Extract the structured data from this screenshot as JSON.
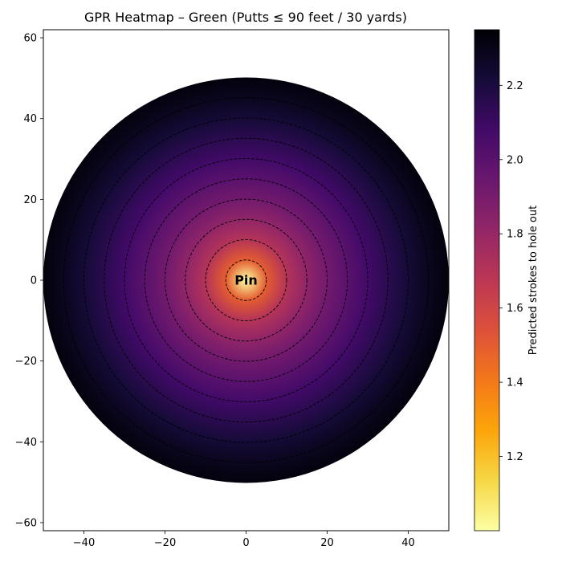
{
  "chart_data": {
    "type": "heatmap",
    "title": "GPR Heatmap – Green (Putts ≤ 90 feet / 30 yards)",
    "xlabel": "",
    "ylabel": "",
    "xlim": [
      -50,
      50
    ],
    "ylim": [
      -62,
      62
    ],
    "x_ticks": [
      -40,
      -20,
      0,
      20,
      40
    ],
    "y_ticks": [
      -60,
      -40,
      -20,
      0,
      20,
      40,
      60
    ],
    "grid": false,
    "colormap": "inferno_r",
    "green_radius": 50,
    "contour_radii": [
      5,
      10,
      15,
      20,
      25,
      30,
      35,
      40,
      45
    ],
    "radial_profile": {
      "distance": [
        0,
        5,
        10,
        15,
        20,
        25,
        30,
        35,
        40,
        45,
        50
      ],
      "strokes": [
        1.0,
        1.5,
        1.7,
        1.82,
        1.92,
        2.0,
        2.08,
        2.15,
        2.22,
        2.28,
        2.33
      ]
    },
    "annotation": {
      "text": "Pin",
      "x": 0,
      "y": 0
    },
    "colorbar": {
      "label": "Predicted strokes to hole out",
      "min": 1.0,
      "max": 2.35,
      "ticks": [
        1.2,
        1.4,
        1.6,
        1.8,
        2.0,
        2.2
      ],
      "placement": "right"
    }
  }
}
